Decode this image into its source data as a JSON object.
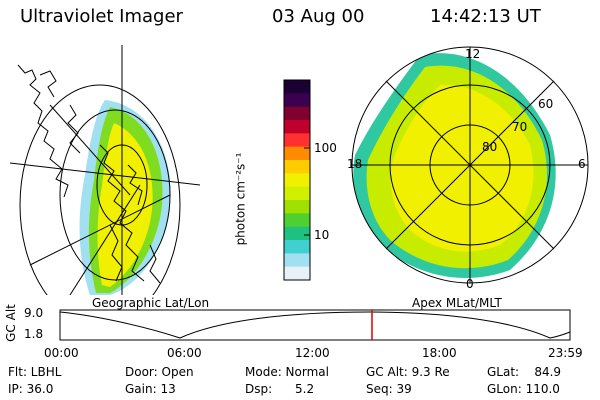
{
  "header": {
    "instrument": "Ultraviolet Imager",
    "date": "03 Aug 00",
    "time": "14:42:13 UT"
  },
  "colorbar": {
    "label": "photon cm⁻²s⁻¹",
    "ticks": [
      "100",
      "10"
    ],
    "colors": [
      "#1a0033",
      "#3b0050",
      "#800030",
      "#c0002a",
      "#ff3030",
      "#ff8c00",
      "#ffcc00",
      "#f0f000",
      "#d0f000",
      "#a0e000",
      "#50d030",
      "#20c080",
      "#40d0d0",
      "#a0e0f0",
      "#e8f0f8"
    ]
  },
  "geo_map": {
    "caption": "Geographic Lat/Lon",
    "aurora_colors": [
      "#f0f000",
      "#c8ec00",
      "#80dc20",
      "#30c8a0",
      "#a0e0f0"
    ]
  },
  "polar_map": {
    "caption": "Apex MLat/MLT",
    "mlt_labels": [
      "12",
      "18",
      "6",
      "0"
    ],
    "mlat_labels": [
      "60",
      "70",
      "80"
    ]
  },
  "timeline": {
    "ylabel": "GC Alt",
    "yticks": [
      "9.0",
      "1.8"
    ],
    "xticks": [
      "00:00",
      "06:00",
      "12:00",
      "18:00",
      "23:59"
    ],
    "marker_color": "#e00000"
  },
  "footer": {
    "flt": "Flt: LBHL",
    "ip": "IP: 36.0",
    "door": "Door: Open",
    "gain": "Gain: 13",
    "mode": "Mode: Normal",
    "dsp": "Dsp:      5.2",
    "gc_alt": "GC Alt: 9.3 Re",
    "seq": "Seq: 39",
    "glat": "GLat:    84.9",
    "glon": "GLon: 110.0"
  }
}
